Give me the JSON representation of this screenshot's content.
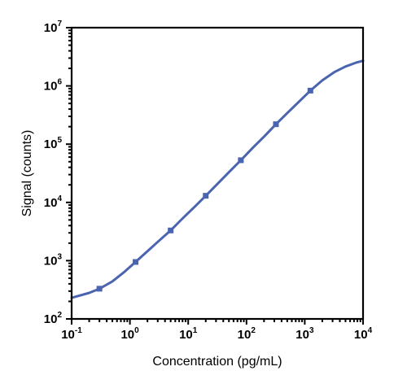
{
  "chart_data": {
    "type": "scatter",
    "title": "",
    "xlabel": "Concentration (pg/mL)",
    "ylabel": "Signal (counts)",
    "x_scale": "log",
    "y_scale": "log",
    "xlim": [
      0.1,
      10000
    ],
    "ylim": [
      100,
      10000000
    ],
    "x_ticks": [
      {
        "base": "10",
        "exp": "-1",
        "value": 0.1
      },
      {
        "base": "10",
        "exp": "0",
        "value": 1
      },
      {
        "base": "10",
        "exp": "1",
        "value": 10
      },
      {
        "base": "10",
        "exp": "2",
        "value": 100
      },
      {
        "base": "10",
        "exp": "3",
        "value": 1000
      },
      {
        "base": "10",
        "exp": "4",
        "value": 10000
      }
    ],
    "y_ticks": [
      {
        "base": "10",
        "exp": "2",
        "value": 100
      },
      {
        "base": "10",
        "exp": "3",
        "value": 1000
      },
      {
        "base": "10",
        "exp": "4",
        "value": 10000
      },
      {
        "base": "10",
        "exp": "5",
        "value": 100000
      },
      {
        "base": "10",
        "exp": "6",
        "value": 1000000
      },
      {
        "base": "10",
        "exp": "7",
        "value": 10000000
      }
    ],
    "grid": false,
    "series": [
      {
        "color": "#4a64b0",
        "marker": "square",
        "points": [
          {
            "x": 0.3,
            "y": 330
          },
          {
            "x": 1.25,
            "y": 950
          },
          {
            "x": 5,
            "y": 3300
          },
          {
            "x": 20,
            "y": 13000
          },
          {
            "x": 80,
            "y": 53000
          },
          {
            "x": 320,
            "y": 220000
          },
          {
            "x": 1250,
            "y": 830000
          }
        ],
        "fit_curve": [
          {
            "x": 0.1,
            "y": 230
          },
          {
            "x": 0.2,
            "y": 280
          },
          {
            "x": 0.3,
            "y": 330
          },
          {
            "x": 0.5,
            "y": 440
          },
          {
            "x": 0.8,
            "y": 640
          },
          {
            "x": 1.25,
            "y": 950
          },
          {
            "x": 2,
            "y": 1450
          },
          {
            "x": 3,
            "y": 2100
          },
          {
            "x": 5,
            "y": 3300
          },
          {
            "x": 8,
            "y": 5300
          },
          {
            "x": 13,
            "y": 8500
          },
          {
            "x": 20,
            "y": 13000
          },
          {
            "x": 35,
            "y": 23000
          },
          {
            "x": 50,
            "y": 33000
          },
          {
            "x": 80,
            "y": 53000
          },
          {
            "x": 130,
            "y": 88000
          },
          {
            "x": 200,
            "y": 135000
          },
          {
            "x": 320,
            "y": 220000
          },
          {
            "x": 500,
            "y": 340000
          },
          {
            "x": 800,
            "y": 540000
          },
          {
            "x": 1250,
            "y": 830000
          },
          {
            "x": 2000,
            "y": 1250000
          },
          {
            "x": 3200,
            "y": 1720000
          },
          {
            "x": 5000,
            "y": 2150000
          },
          {
            "x": 7500,
            "y": 2500000
          },
          {
            "x": 10000,
            "y": 2700000
          }
        ]
      }
    ]
  }
}
